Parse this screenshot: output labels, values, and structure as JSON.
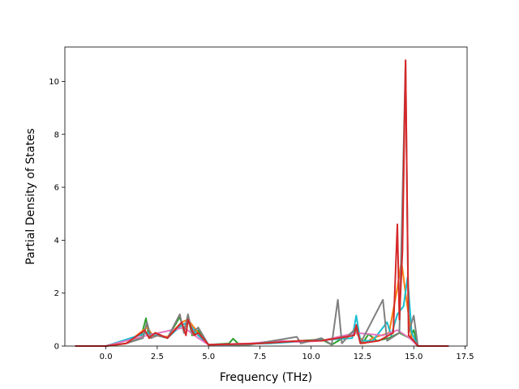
{
  "chart_data": {
    "type": "line",
    "title": "",
    "xlabel": "Frequency (THz)",
    "ylabel": "Partial Density of States",
    "xlim": [
      -2.0,
      17.6
    ],
    "ylim": [
      0,
      11.3
    ],
    "xticks": [
      0.0,
      2.5,
      5.0,
      7.5,
      10.0,
      12.5,
      15.0,
      17.5
    ],
    "xtick_labels": [
      "0.0",
      "2.5",
      "5.0",
      "7.5",
      "10.0",
      "12.5",
      "15.0",
      "17.5"
    ],
    "yticks": [
      0,
      2,
      4,
      6,
      8,
      10
    ],
    "ytick_labels": [
      "0",
      "2",
      "4",
      "6",
      "8",
      "10"
    ],
    "grid": false,
    "legend": "none",
    "series": [
      {
        "color": "#2ca02c",
        "points": [
          [
            -1.5,
            0
          ],
          [
            0.0,
            0
          ],
          [
            1.0,
            0.1
          ],
          [
            1.7,
            0.3
          ],
          [
            1.95,
            1.05
          ],
          [
            2.1,
            0.3
          ],
          [
            2.4,
            0.5
          ],
          [
            3.0,
            0.3
          ],
          [
            3.6,
            1.1
          ],
          [
            3.8,
            0.6
          ],
          [
            4.0,
            1.1
          ],
          [
            4.2,
            0.4
          ],
          [
            4.5,
            0.6
          ],
          [
            5.0,
            0.05
          ],
          [
            6.0,
            0.1
          ],
          [
            6.2,
            0.28
          ],
          [
            6.5,
            0.05
          ],
          [
            7.5,
            0.1
          ],
          [
            8.5,
            0.15
          ],
          [
            9.5,
            0.2
          ],
          [
            10.5,
            0.25
          ],
          [
            11.0,
            0.05
          ],
          [
            12.2,
            0.6
          ],
          [
            12.5,
            0.1
          ],
          [
            12.8,
            0.45
          ],
          [
            13.2,
            0.2
          ],
          [
            13.8,
            0.3
          ],
          [
            14.3,
            0.5
          ],
          [
            14.8,
            0.3
          ],
          [
            15.0,
            0.6
          ],
          [
            15.2,
            0
          ],
          [
            16.7,
            0
          ]
        ]
      },
      {
        "color": "#ff7f0e",
        "points": [
          [
            -1.5,
            0
          ],
          [
            0.0,
            0
          ],
          [
            1.0,
            0.1
          ],
          [
            2.0,
            0.7
          ],
          [
            2.3,
            0.4
          ],
          [
            3.0,
            0.35
          ],
          [
            3.7,
            0.9
          ],
          [
            4.0,
            1.0
          ],
          [
            4.5,
            0.5
          ],
          [
            5.0,
            0.05
          ],
          [
            7.5,
            0.1
          ],
          [
            9.5,
            0.2
          ],
          [
            10.5,
            0.2
          ],
          [
            12.2,
            0.5
          ],
          [
            12.6,
            0.1
          ],
          [
            13.0,
            0.3
          ],
          [
            13.8,
            0.5
          ],
          [
            14.2,
            2.2
          ],
          [
            14.4,
            3.2
          ],
          [
            14.6,
            2.0
          ],
          [
            14.9,
            0.3
          ],
          [
            15.2,
            0
          ],
          [
            16.7,
            0
          ]
        ]
      },
      {
        "color": "#17becf",
        "points": [
          [
            -1.5,
            0
          ],
          [
            0.0,
            0
          ],
          [
            2.0,
            0.5
          ],
          [
            3.0,
            0.3
          ],
          [
            3.7,
            0.8
          ],
          [
            4.0,
            0.9
          ],
          [
            4.5,
            0.4
          ],
          [
            5.0,
            0.05
          ],
          [
            8.0,
            0.1
          ],
          [
            10.0,
            0.2
          ],
          [
            12.0,
            0.3
          ],
          [
            12.2,
            1.15
          ],
          [
            12.4,
            0.2
          ],
          [
            13.0,
            0.2
          ],
          [
            13.7,
            0.9
          ],
          [
            13.9,
            0.4
          ],
          [
            14.2,
            1.2
          ],
          [
            14.5,
            1.5
          ],
          [
            14.7,
            2.6
          ],
          [
            14.9,
            0.5
          ],
          [
            15.2,
            0
          ],
          [
            16.7,
            0
          ]
        ]
      },
      {
        "color": "#e377c2",
        "points": [
          [
            -1.5,
            0
          ],
          [
            0.0,
            0
          ],
          [
            2.0,
            0.4
          ],
          [
            3.8,
            0.7
          ],
          [
            4.5,
            0.3
          ],
          [
            5.0,
            0.05
          ],
          [
            7.0,
            0.1
          ],
          [
            8.5,
            0.2
          ],
          [
            9.5,
            0.15
          ],
          [
            10.5,
            0.2
          ],
          [
            12.2,
            0.5
          ],
          [
            13.5,
            0.4
          ],
          [
            14.2,
            0.6
          ],
          [
            14.8,
            0.3
          ],
          [
            15.2,
            0
          ],
          [
            16.7,
            0
          ]
        ]
      },
      {
        "color": "#7f7f7f",
        "points": [
          [
            -1.5,
            0
          ],
          [
            0.0,
            0
          ],
          [
            1.0,
            0.1
          ],
          [
            1.8,
            0.3
          ],
          [
            2.0,
            0.9
          ],
          [
            2.2,
            0.3
          ],
          [
            2.5,
            0.4
          ],
          [
            3.0,
            0.3
          ],
          [
            3.6,
            1.2
          ],
          [
            3.8,
            0.5
          ],
          [
            4.0,
            1.2
          ],
          [
            4.2,
            0.5
          ],
          [
            4.5,
            0.7
          ],
          [
            5.0,
            0.05
          ],
          [
            7.0,
            0.05
          ],
          [
            9.3,
            0.35
          ],
          [
            9.5,
            0.1
          ],
          [
            10.5,
            0.3
          ],
          [
            11.0,
            0.05
          ],
          [
            11.3,
            1.75
          ],
          [
            11.5,
            0.1
          ],
          [
            12.2,
            0.7
          ],
          [
            12.4,
            0.1
          ],
          [
            13.5,
            1.75
          ],
          [
            13.7,
            0.2
          ],
          [
            14.3,
            0.5
          ],
          [
            14.6,
            10.75
          ],
          [
            14.75,
            0.5
          ],
          [
            15.0,
            1.15
          ],
          [
            15.2,
            0
          ],
          [
            16.7,
            0
          ]
        ]
      },
      {
        "color": "#d62728",
        "points": [
          [
            -1.5,
            0
          ],
          [
            0.0,
            0
          ],
          [
            1.0,
            0.1
          ],
          [
            1.9,
            0.6
          ],
          [
            2.1,
            0.3
          ],
          [
            2.4,
            0.5
          ],
          [
            3.0,
            0.3
          ],
          [
            3.7,
            0.9
          ],
          [
            3.9,
            0.4
          ],
          [
            4.0,
            1.0
          ],
          [
            4.3,
            0.4
          ],
          [
            4.5,
            0.5
          ],
          [
            5.0,
            0.05
          ],
          [
            7.5,
            0.1
          ],
          [
            9.5,
            0.2
          ],
          [
            10.5,
            0.2
          ],
          [
            12.1,
            0.4
          ],
          [
            12.2,
            0.8
          ],
          [
            12.4,
            0.1
          ],
          [
            13.3,
            0.2
          ],
          [
            14.0,
            0.5
          ],
          [
            14.2,
            4.6
          ],
          [
            14.3,
            1.0
          ],
          [
            14.45,
            3.6
          ],
          [
            14.6,
            10.8
          ],
          [
            14.75,
            0.4
          ],
          [
            15.0,
            0.2
          ],
          [
            15.2,
            0
          ],
          [
            16.7,
            0
          ]
        ]
      }
    ]
  }
}
